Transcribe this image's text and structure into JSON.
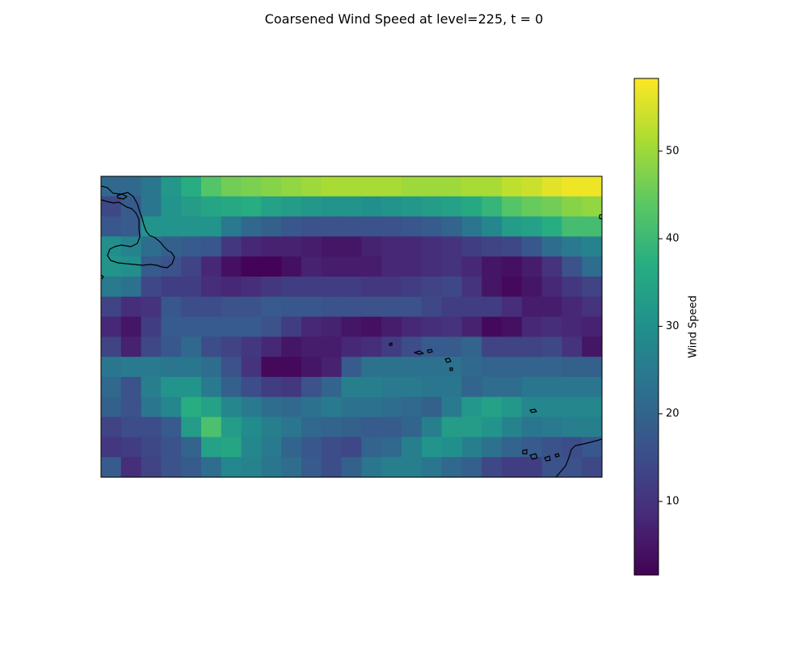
{
  "chart_data": {
    "type": "heatmap",
    "title": "Coarsened Wind Speed at level=225, t = 0",
    "xlabel": "",
    "ylabel": "",
    "colorbar": {
      "label": "Wind Speed",
      "range": [
        1.6,
        58.3
      ],
      "ticks": [
        10,
        20,
        30,
        40,
        50
      ],
      "tick_labels": [
        "10",
        "20",
        "30",
        "40",
        "50"
      ],
      "colormap": "viridis"
    },
    "grid": false,
    "rows": 15,
    "cols": 25,
    "values": [
      [
        21,
        21,
        24,
        32,
        37,
        43,
        46,
        47,
        48,
        49,
        50,
        51,
        51,
        51,
        51,
        50,
        50,
        50,
        51,
        51,
        53,
        54,
        56,
        57,
        57
      ],
      [
        14,
        18,
        24,
        31,
        33,
        35,
        36,
        37,
        34,
        33,
        32,
        31,
        31,
        30,
        31,
        32,
        33,
        34,
        36,
        39,
        43,
        45,
        46,
        48,
        49
      ],
      [
        17,
        18,
        31,
        31,
        31,
        31,
        25,
        21,
        19,
        17,
        16,
        16,
        16,
        16,
        16,
        17,
        18,
        20,
        24,
        28,
        33,
        34,
        37,
        41,
        41
      ],
      [
        30,
        27,
        22,
        19,
        18,
        17,
        11,
        8,
        7,
        7,
        6,
        5,
        5,
        7,
        8,
        8,
        9,
        10,
        12,
        13,
        14,
        17,
        22,
        25,
        27
      ],
      [
        31,
        30,
        18,
        16,
        13,
        8,
        4,
        2,
        2,
        4,
        7,
        6,
        6,
        6,
        8,
        8,
        9,
        10,
        8,
        5,
        4,
        6,
        10,
        16,
        22
      ],
      [
        25,
        23,
        14,
        12,
        12,
        9,
        8,
        9,
        11,
        12,
        12,
        12,
        12,
        11,
        11,
        12,
        13,
        14,
        10,
        5,
        3,
        5,
        8,
        11,
        13
      ],
      [
        13,
        9,
        10,
        17,
        15,
        15,
        16,
        16,
        18,
        17,
        17,
        16,
        16,
        16,
        16,
        16,
        14,
        12,
        12,
        12,
        9,
        6,
        6,
        8,
        10
      ],
      [
        8,
        5,
        12,
        18,
        18,
        18,
        18,
        18,
        16,
        12,
        8,
        7,
        5,
        4,
        6,
        8,
        9,
        10,
        7,
        3,
        4,
        8,
        9,
        8,
        7
      ],
      [
        13,
        7,
        14,
        17,
        21,
        15,
        13,
        11,
        8,
        5,
        6,
        6,
        8,
        9,
        12,
        15,
        18,
        18,
        20,
        13,
        13,
        13,
        14,
        10,
        5
      ],
      [
        24,
        25,
        25,
        24,
        24,
        22,
        16,
        10,
        3,
        3,
        5,
        7,
        18,
        23,
        23,
        23,
        23,
        23,
        21,
        20,
        20,
        20,
        20,
        19,
        19
      ],
      [
        21,
        16,
        26,
        31,
        31,
        25,
        19,
        15,
        12,
        11,
        16,
        20,
        26,
        26,
        25,
        25,
        24,
        24,
        20,
        22,
        22,
        24,
        24,
        24,
        24
      ],
      [
        19,
        16,
        24,
        28,
        37,
        34,
        28,
        25,
        22,
        21,
        23,
        25,
        23,
        23,
        22,
        21,
        19,
        25,
        32,
        34,
        32,
        28,
        28,
        28,
        28
      ],
      [
        13,
        15,
        15,
        18,
        33,
        42,
        33,
        29,
        26,
        24,
        21,
        20,
        19,
        18,
        18,
        20,
        26,
        33,
        33,
        31,
        27,
        24,
        25,
        26,
        26
      ],
      [
        11,
        12,
        14,
        16,
        20,
        34,
        35,
        28,
        25,
        20,
        17,
        15,
        14,
        20,
        21,
        26,
        31,
        30,
        26,
        23,
        20,
        18,
        16,
        15,
        17
      ],
      [
        18,
        9,
        13,
        16,
        18,
        22,
        28,
        27,
        24,
        22,
        18,
        15,
        19,
        24,
        26,
        26,
        24,
        21,
        19,
        14,
        12,
        12,
        16,
        16,
        14
      ]
    ],
    "colorbar_labels": [
      "10",
      "20",
      "30",
      "40",
      "50"
    ]
  }
}
